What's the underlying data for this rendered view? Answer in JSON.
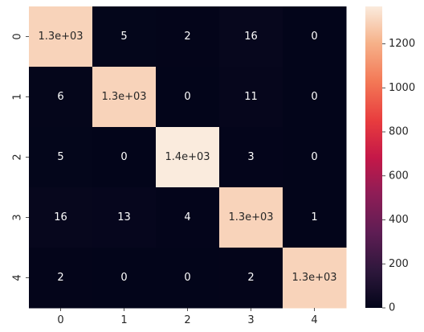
{
  "chart_data": {
    "type": "heatmap",
    "title": "",
    "xlabel": "",
    "ylabel": "",
    "x_categories": [
      "0",
      "1",
      "2",
      "3",
      "4"
    ],
    "y_categories": [
      "0",
      "1",
      "2",
      "3",
      "4"
    ],
    "values": [
      [
        1300,
        5,
        2,
        16,
        0
      ],
      [
        6,
        1300,
        0,
        11,
        0
      ],
      [
        5,
        0,
        1400,
        3,
        0
      ],
      [
        16,
        13,
        4,
        1300,
        1
      ],
      [
        2,
        0,
        0,
        2,
        1300
      ]
    ],
    "annotations": [
      [
        "1.3e+03",
        "5",
        "2",
        "16",
        "0"
      ],
      [
        "6",
        "1.3e+03",
        "0",
        "11",
        "0"
      ],
      [
        "5",
        "0",
        "1.4e+03",
        "3",
        "0"
      ],
      [
        "16",
        "13",
        "4",
        "1.3e+03",
        "1"
      ],
      [
        "2",
        "0",
        "0",
        "2",
        "1.3e+03"
      ]
    ],
    "colormap": "rocket",
    "color_range": [
      0,
      1370
    ],
    "colorbar_ticks": [
      {
        "value": 0,
        "label": "0"
      },
      {
        "value": 200,
        "label": "200"
      },
      {
        "value": 400,
        "label": "400"
      },
      {
        "value": 600,
        "label": "600"
      },
      {
        "value": 800,
        "label": "800"
      },
      {
        "value": 1000,
        "label": "1000"
      },
      {
        "value": 1200,
        "label": "1200"
      }
    ],
    "grid": false,
    "legend": "colorbar-right"
  }
}
